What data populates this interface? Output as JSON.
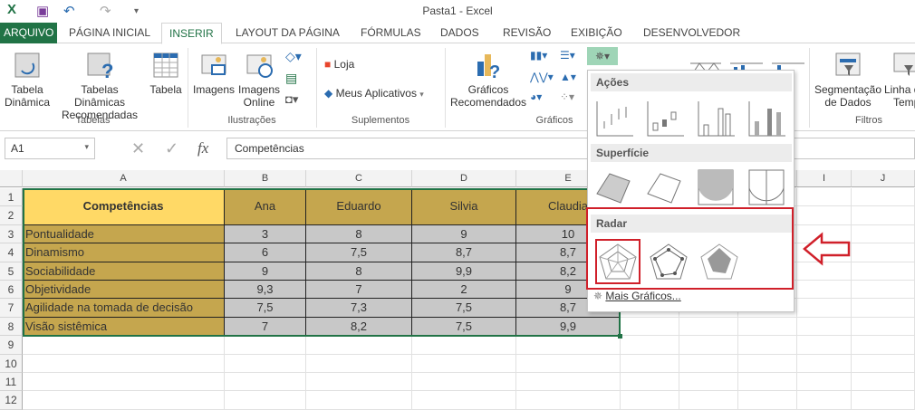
{
  "window": {
    "title": "Pasta1 - Excel"
  },
  "tabs": [
    "ARQUIVO",
    "PÁGINA INICIAL",
    "INSERIR",
    "LAYOUT DA PÁGINA",
    "FÓRMULAS",
    "DADOS",
    "REVISÃO",
    "EXIBIÇÃO",
    "DESENVOLVEDOR"
  ],
  "active_tab": "INSERIR",
  "ribbon": {
    "tabela_dinamica": [
      "Tabela",
      "Dinâmica"
    ],
    "tabelas_recomendadas": [
      "Tabelas Dinâmicas",
      "Recomendadas"
    ],
    "tabela": "Tabela",
    "imagens": "Imagens",
    "imagens_online": [
      "Imagens",
      "Online"
    ],
    "loja": "Loja",
    "meus_aplicativos": "Meus Aplicativos",
    "graficos_recomendados": [
      "Gráficos",
      "Recomendados"
    ],
    "segmentacao": [
      "Segmentação",
      "de Dados"
    ],
    "linha_tempo": [
      "Linha d",
      "Temp"
    ],
    "partial_label": [
      "s/",
      "s"
    ],
    "groups": {
      "tabelas": "Tabelas",
      "ilustracoes": "Ilustrações",
      "suplementos": "Suplementos",
      "graficos": "Gráficos",
      "filtros": "Filtros"
    }
  },
  "formula_bar": {
    "name_box": "A1",
    "fx": "fx",
    "content": "Competências"
  },
  "columns": [
    "A",
    "B",
    "C",
    "D",
    "E",
    "I",
    "J"
  ],
  "rows": [
    "1",
    "2",
    "3",
    "4",
    "5",
    "6",
    "7",
    "8",
    "9",
    "10",
    "11",
    "12"
  ],
  "table": {
    "header": [
      "Competências",
      "Ana",
      "Eduardo",
      "Silvia",
      "Claudia"
    ],
    "rows": [
      [
        "Pontualidade",
        "3",
        "8",
        "9",
        "10"
      ],
      [
        "Dinamismo",
        "6",
        "7,5",
        "8,7",
        "8,7"
      ],
      [
        "Sociabilidade",
        "9",
        "8",
        "9,9",
        "8,2"
      ],
      [
        "Objetividade",
        "9,3",
        "7",
        "2",
        "9"
      ],
      [
        "Agilidade na tomada de decisão",
        "7,5",
        "7,3",
        "7,5",
        "8,7"
      ],
      [
        "Visão sistêmica",
        "7",
        "8,2",
        "7,5",
        "9,9"
      ]
    ]
  },
  "dropdown": {
    "sections": {
      "acoes": "Ações",
      "superficie": "Superfície",
      "radar": "Radar"
    },
    "more": "Mais Gráficos..."
  },
  "colors": {
    "accent": "#217346",
    "highlight": "#d0202a",
    "header_fill": "#c5a64e",
    "title_fill": "#ffd966",
    "value_fill": "#c8c8c8"
  }
}
